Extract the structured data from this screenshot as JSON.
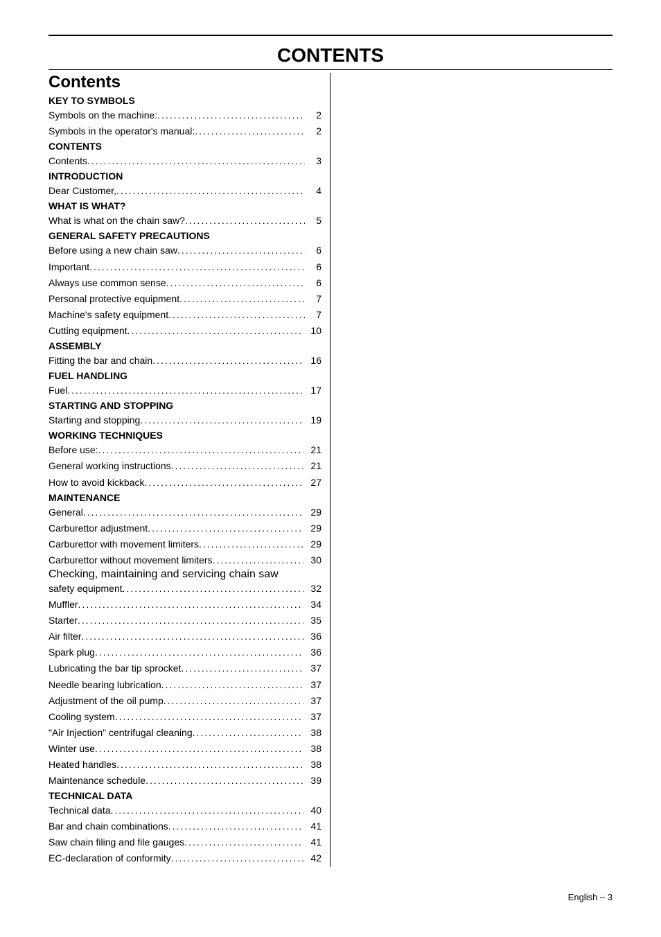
{
  "page_title": "CONTENTS",
  "contents_heading": "Contents",
  "sections": [
    {
      "heading": "KEY TO SYMBOLS",
      "items": [
        {
          "label": "Symbols on the machine:",
          "page": "2"
        },
        {
          "label": "Symbols in the operator's manual:",
          "page": "2"
        }
      ]
    },
    {
      "heading": "CONTENTS",
      "items": [
        {
          "label": "Contents",
          "page": "3"
        }
      ]
    },
    {
      "heading": "INTRODUCTION",
      "items": [
        {
          "label": "Dear Customer,",
          "page": "4"
        }
      ]
    },
    {
      "heading": "WHAT IS WHAT?",
      "items": [
        {
          "label": "What is what on the chain saw?",
          "page": "5"
        }
      ]
    },
    {
      "heading": "GENERAL SAFETY PRECAUTIONS",
      "items": [
        {
          "label": "Before using a new chain saw",
          "page": "6"
        },
        {
          "label": "Important",
          "page": "6"
        },
        {
          "label": "Always use common sense",
          "page": "6"
        },
        {
          "label": "Personal protective equipment",
          "page": "7"
        },
        {
          "label": "Machine's safety equipment",
          "page": "7"
        },
        {
          "label": "Cutting equipment",
          "page": "10"
        }
      ]
    },
    {
      "heading": "ASSEMBLY",
      "items": [
        {
          "label": "Fitting the bar and chain",
          "page": "16"
        }
      ]
    },
    {
      "heading": "FUEL HANDLING",
      "items": [
        {
          "label": "Fuel",
          "page": "17"
        }
      ]
    },
    {
      "heading": "STARTING AND STOPPING",
      "items": [
        {
          "label": "Starting and stopping",
          "page": "19"
        }
      ]
    },
    {
      "heading": "WORKING TECHNIQUES",
      "items": [
        {
          "label": "Before use:",
          "page": "21"
        },
        {
          "label": "General working instructions",
          "page": "21"
        },
        {
          "label": "How to avoid kickback",
          "page": "27"
        }
      ]
    },
    {
      "heading": "MAINTENANCE",
      "items": [
        {
          "label": "General",
          "page": "29"
        },
        {
          "label": "Carburettor adjustment",
          "page": "29"
        },
        {
          "label": "Carburettor with movement limiters",
          "page": "29"
        },
        {
          "label": "Carburettor without movement limiters",
          "page": "30"
        },
        {
          "label_first": "Checking, maintaining and servicing chain saw",
          "label": "safety equipment",
          "page": "32",
          "multiline": true
        },
        {
          "label": "Muffler",
          "page": "34"
        },
        {
          "label": "Starter",
          "page": "35"
        },
        {
          "label": "Air filter",
          "page": "36"
        },
        {
          "label": "Spark plug",
          "page": "36"
        },
        {
          "label": "Lubricating the bar tip sprocket",
          "page": "37"
        },
        {
          "label": "Needle bearing lubrication",
          "page": "37"
        },
        {
          "label": "Adjustment of the oil pump",
          "page": "37"
        },
        {
          "label": "Cooling system",
          "page": "37"
        },
        {
          "label": "\"Air Injection\" centrifugal cleaning",
          "page": "38"
        },
        {
          "label": "Winter use",
          "page": "38"
        },
        {
          "label": "Heated handles",
          "page": "38"
        },
        {
          "label": "Maintenance schedule",
          "page": "39"
        }
      ]
    },
    {
      "heading": "TECHNICAL DATA",
      "items": [
        {
          "label": "Technical data",
          "page": "40"
        },
        {
          "label": "Bar and chain combinations",
          "page": "41"
        },
        {
          "label": "Saw chain filing and file gauges",
          "page": "41"
        },
        {
          "label": "EC-declaration of conformity",
          "page": "42"
        }
      ]
    }
  ],
  "footer_text": "English – 3"
}
